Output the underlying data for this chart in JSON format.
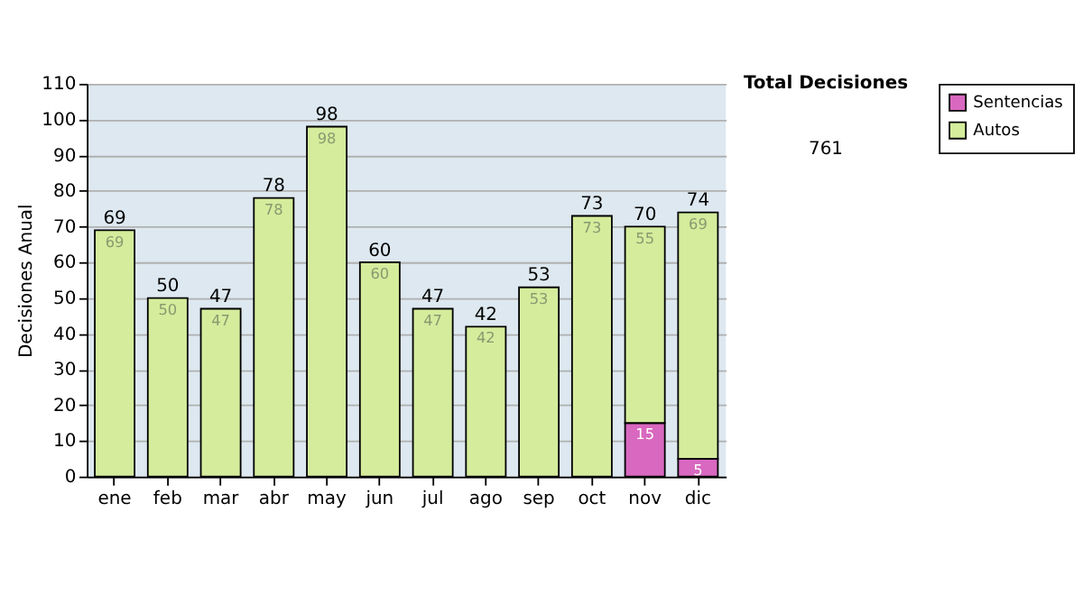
{
  "chart_data": {
    "type": "bar",
    "stacked": true,
    "ylabel": "Decisiones Anual",
    "categories": [
      "ene",
      "feb",
      "mar",
      "abr",
      "may",
      "jun",
      "jul",
      "ago",
      "sep",
      "oct",
      "nov",
      "dic"
    ],
    "series": [
      {
        "name": "Sentencias",
        "color": "#d868c0",
        "values": [
          0,
          0,
          0,
          0,
          0,
          0,
          0,
          0,
          0,
          0,
          15,
          5
        ],
        "value_labels": [
          null,
          null,
          null,
          null,
          null,
          null,
          null,
          null,
          null,
          null,
          "15",
          "5"
        ]
      },
      {
        "name": "Autos",
        "color": "#d4ec9c",
        "values": [
          69,
          50,
          47,
          78,
          98,
          60,
          47,
          42,
          53,
          73,
          55,
          69
        ],
        "value_labels": [
          "69",
          "50",
          "47",
          "78",
          "98",
          "60",
          "47",
          "42",
          "53",
          "73",
          "55",
          "69"
        ]
      }
    ],
    "totals": [
      "69",
      "50",
      "47",
      "78",
      "98",
      "60",
      "47",
      "42",
      "53",
      "73",
      "70",
      "74"
    ],
    "ylim": [
      0,
      110
    ],
    "yticks": [
      0,
      10,
      20,
      30,
      40,
      50,
      60,
      70,
      80,
      90,
      100,
      110
    ],
    "grid": "y",
    "legend": "right",
    "annotations": [
      "Total Decisiones",
      "761"
    ]
  }
}
